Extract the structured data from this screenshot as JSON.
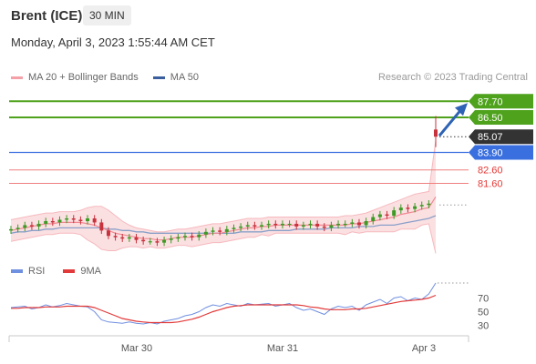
{
  "header": {
    "instrument": "Brent (ICE)",
    "timeframe": "30 MIN",
    "datetime": "Monday, April 3, 2023 1:55:44 AM CET",
    "credit": "Research © 2023 Trading Central"
  },
  "legend": {
    "ma20": {
      "label": "MA 20 + Bollinger Bands",
      "color": "#f4a0a6"
    },
    "ma50": {
      "label": "MA 50",
      "color": "#3b5f9e"
    }
  },
  "rsi_legend": {
    "rsi": {
      "label": "RSI",
      "color": "#6f8fe0"
    },
    "ma9": {
      "label": "9MA",
      "color": "#e23a3a"
    }
  },
  "colors": {
    "resistance": "#4ea21c",
    "pivot": "#3a6fe0",
    "support": "#f08080",
    "last": "#333333"
  },
  "chart_data": [
    {
      "type": "line",
      "title": "Brent (ICE) 30 MIN",
      "x_ticks": [
        "Mar 30",
        "Mar 31",
        "Apr 3"
      ],
      "levels": [
        {
          "name": "resistance-2",
          "value": 87.7,
          "label": "87.70"
        },
        {
          "name": "resistance-1",
          "value": 86.5,
          "label": "86.50"
        },
        {
          "name": "last-price",
          "value": 85.07,
          "label": "85.07"
        },
        {
          "name": "pivot",
          "value": 83.9,
          "label": "83.90"
        },
        {
          "name": "support-1",
          "value": 82.6,
          "label": "82.60"
        },
        {
          "name": "support-2",
          "value": 81.6,
          "label": "81.60"
        }
      ],
      "ylim": [
        76.5,
        88.8
      ],
      "series": [
        {
          "name": "MA 20 + Bollinger Bands"
        },
        {
          "name": "MA 50"
        }
      ],
      "close": [
        78.2,
        78.3,
        78.5,
        78.4,
        78.6,
        78.8,
        78.7,
        78.9,
        79.0,
        78.9,
        78.8,
        79.0,
        78.7,
        78.1,
        77.7,
        77.6,
        77.5,
        77.6,
        77.4,
        77.3,
        77.3,
        77.2,
        77.4,
        77.5,
        77.6,
        77.7,
        77.6,
        77.8,
        78.0,
        78.1,
        78.0,
        78.2,
        78.3,
        78.4,
        78.5,
        78.4,
        78.5,
        78.6,
        78.5,
        78.6,
        78.6,
        78.4,
        78.5,
        78.6,
        78.4,
        78.3,
        78.5,
        78.6,
        78.6,
        78.7,
        78.5,
        78.8,
        79.1,
        79.3,
        79.2,
        79.6,
        79.8,
        79.7,
        79.9,
        80.0,
        80.1,
        85.07
      ],
      "ma20": [
        78.1,
        78.2,
        78.3,
        78.4,
        78.5,
        78.6,
        78.6,
        78.7,
        78.7,
        78.7,
        78.7,
        78.6,
        78.5,
        78.3,
        78.1,
        77.9,
        77.8,
        77.7,
        77.6,
        77.5,
        77.5,
        77.4,
        77.4,
        77.5,
        77.6,
        77.6,
        77.6,
        77.7,
        77.8,
        77.9,
        77.9,
        78.0,
        78.1,
        78.2,
        78.3,
        78.3,
        78.4,
        78.4,
        78.5,
        78.5,
        78.5,
        78.5,
        78.5,
        78.5,
        78.5,
        78.5,
        78.5,
        78.5,
        78.5,
        78.6,
        78.6,
        78.7,
        78.8,
        78.9,
        79.0,
        79.1,
        79.3,
        79.4,
        79.5,
        79.7,
        79.8,
        80.6
      ],
      "ma50": [
        77.9,
        78.0,
        78.0,
        78.1,
        78.1,
        78.2,
        78.2,
        78.3,
        78.3,
        78.3,
        78.3,
        78.3,
        78.3,
        78.3,
        78.2,
        78.2,
        78.1,
        78.1,
        78.0,
        78.0,
        77.9,
        77.9,
        77.9,
        77.9,
        77.9,
        77.9,
        77.9,
        77.9,
        77.9,
        77.9,
        77.9,
        77.9,
        77.9,
        78.0,
        78.0,
        78.0,
        78.0,
        78.1,
        78.1,
        78.1,
        78.1,
        78.2,
        78.2,
        78.2,
        78.2,
        78.2,
        78.3,
        78.3,
        78.3,
        78.3,
        78.4,
        78.4,
        78.4,
        78.5,
        78.5,
        78.5,
        78.6,
        78.7,
        78.8,
        78.9,
        79.0,
        79.2
      ],
      "bb_upper": [
        78.9,
        79.0,
        79.1,
        79.2,
        79.3,
        79.4,
        79.4,
        79.5,
        79.5,
        79.5,
        79.6,
        79.8,
        79.9,
        79.9,
        79.6,
        79.2,
        78.8,
        78.5,
        78.3,
        78.2,
        78.1,
        78.0,
        78.0,
        78.1,
        78.2,
        78.2,
        78.3,
        78.4,
        78.5,
        78.6,
        78.6,
        78.7,
        78.8,
        78.9,
        79.0,
        79.0,
        79.0,
        79.1,
        79.1,
        79.1,
        79.1,
        79.1,
        79.1,
        79.1,
        79.1,
        79.1,
        79.1,
        79.1,
        79.2,
        79.2,
        79.3,
        79.4,
        79.6,
        79.8,
        80.0,
        80.2,
        80.4,
        80.6,
        80.8,
        80.9,
        81.0,
        84.8
      ],
      "bb_lower": [
        77.3,
        77.4,
        77.5,
        77.6,
        77.7,
        77.8,
        77.8,
        77.9,
        77.9,
        77.9,
        77.8,
        77.4,
        77.1,
        76.7,
        76.6,
        76.6,
        76.8,
        76.9,
        76.9,
        76.8,
        76.9,
        76.8,
        76.8,
        76.9,
        77.0,
        77.0,
        76.9,
        77.0,
        77.1,
        77.2,
        77.2,
        77.3,
        77.4,
        77.5,
        77.6,
        77.6,
        77.8,
        77.7,
        77.9,
        77.9,
        77.9,
        77.9,
        77.9,
        77.9,
        77.9,
        77.9,
        77.9,
        77.9,
        77.8,
        78.0,
        77.9,
        78.0,
        78.0,
        78.0,
        78.0,
        78.0,
        78.2,
        78.2,
        78.2,
        78.5,
        78.6,
        76.4
      ]
    },
    {
      "type": "line",
      "title": "RSI",
      "y_ticks": [
        30,
        50,
        70
      ],
      "ylim": [
        20,
        100
      ],
      "series": [
        {
          "name": "RSI",
          "values": [
            56,
            57,
            58,
            54,
            56,
            60,
            57,
            59,
            62,
            60,
            58,
            57,
            50,
            38,
            35,
            34,
            33,
            35,
            33,
            32,
            34,
            32,
            36,
            38,
            40,
            44,
            46,
            50,
            56,
            60,
            58,
            62,
            60,
            58,
            62,
            60,
            61,
            62,
            58,
            60,
            62,
            56,
            52,
            54,
            50,
            46,
            54,
            58,
            56,
            58,
            52,
            60,
            64,
            68,
            62,
            70,
            72,
            66,
            70,
            68,
            76,
            92
          ]
        },
        {
          "name": "9MA",
          "values": [
            55,
            55,
            56,
            56,
            56,
            57,
            57,
            57,
            58,
            58,
            58,
            58,
            56,
            52,
            48,
            44,
            40,
            38,
            36,
            35,
            34,
            34,
            34,
            34,
            35,
            37,
            39,
            42,
            46,
            50,
            53,
            56,
            58,
            59,
            60,
            60,
            60,
            60,
            60,
            60,
            60,
            60,
            59,
            57,
            56,
            54,
            53,
            53,
            53,
            54,
            54,
            55,
            57,
            59,
            61,
            63,
            65,
            66,
            67,
            68,
            70,
            74
          ]
        }
      ]
    }
  ]
}
